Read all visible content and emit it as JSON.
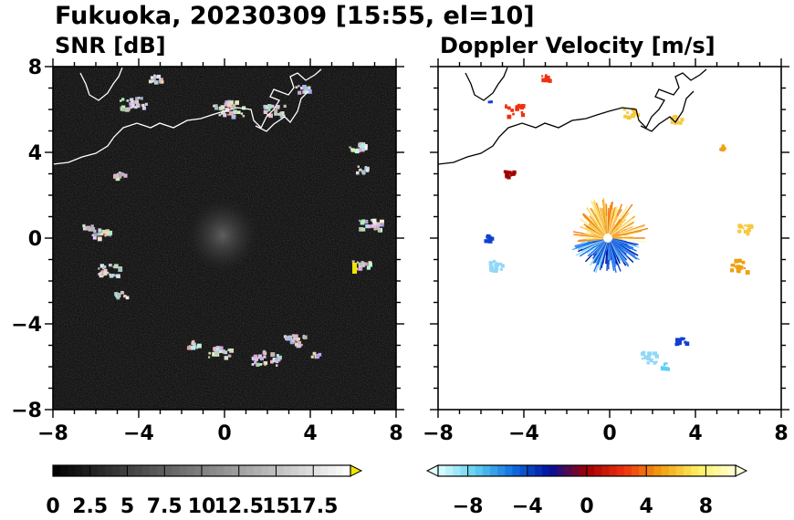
{
  "figure": {
    "title": "Fukuoka, 20230309 [15:55, el=10]"
  },
  "chart_data": [
    {
      "type": "heatmap",
      "title": "SNR [dB]",
      "xlim": [
        -8,
        8
      ],
      "ylim": [
        -8,
        8
      ],
      "x_ticks": [
        "−8",
        "−4",
        "0",
        "4",
        "8"
      ],
      "y_ticks": [
        "−8",
        "−4",
        "0",
        "4",
        "8"
      ],
      "colorbar": {
        "range": [
          0,
          20
        ],
        "extend": "max",
        "ticks": [
          "0",
          "2.5",
          "5",
          "7.5",
          "10",
          "12.5",
          "15",
          "17.5"
        ],
        "colors": [
          "#000000",
          "#ffffff"
        ],
        "extend_color": "#f2e400"
      }
    },
    {
      "type": "heatmap",
      "title": "Doppler Velocity [m/s]",
      "xlim": [
        -8,
        8
      ],
      "ylim": [
        -8,
        8
      ],
      "x_ticks": [
        "−8",
        "−4",
        "0",
        "4",
        "8"
      ],
      "y_ticks": [],
      "colorbar": {
        "range": [
          -10,
          10
        ],
        "extend": "both",
        "ticks": [
          "−8",
          "−4",
          "0",
          "4",
          "8"
        ],
        "colors": [
          "#e0ffff",
          "#60d0f0",
          "#1070e0",
          "#0010a0",
          "#a00000",
          "#f03010",
          "#f0a010",
          "#fff060",
          "#ffffd8"
        ]
      }
    }
  ]
}
